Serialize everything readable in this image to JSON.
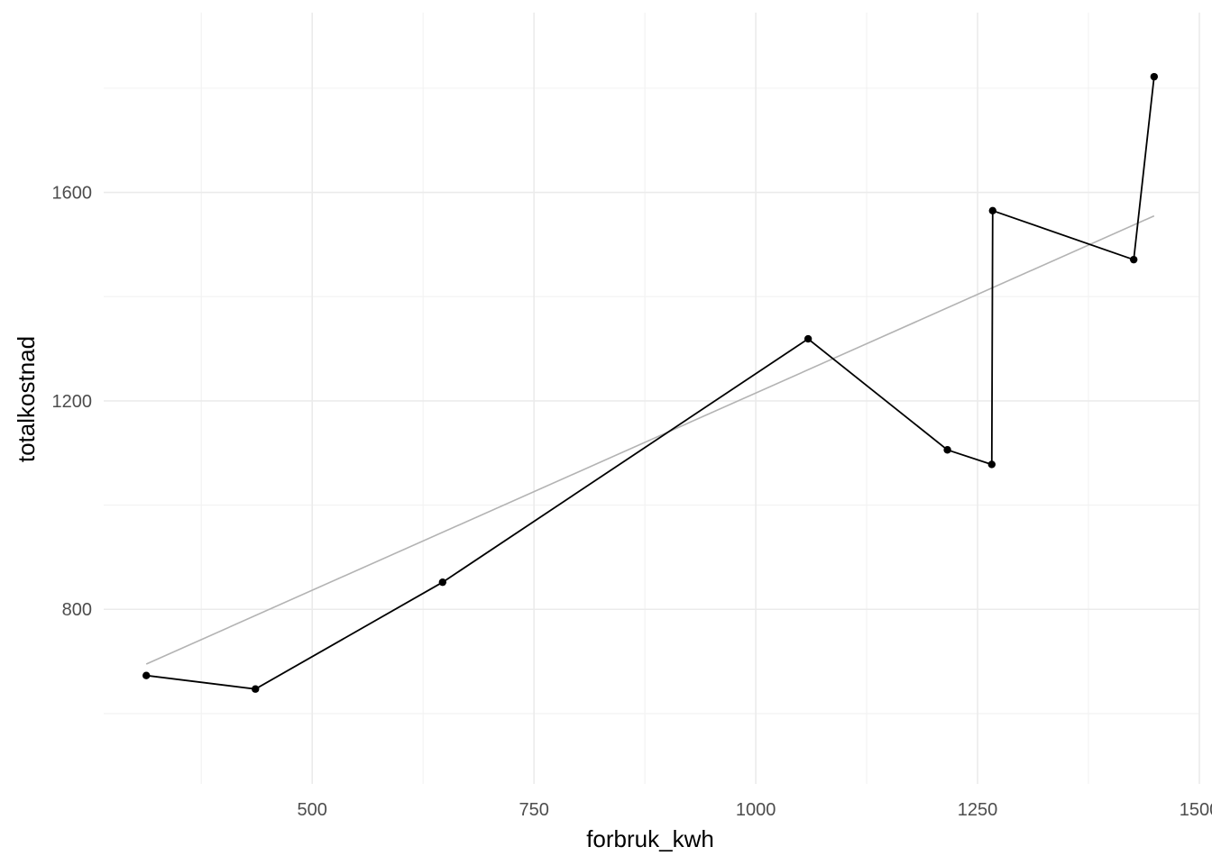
{
  "chart_data": {
    "type": "line",
    "xlabel": "forbruk_kwh",
    "ylabel": "totalkostnad",
    "xlim": [
      265,
      1500
    ],
    "ylim": [
      465,
      1945
    ],
    "x_ticks": [
      500,
      750,
      1000,
      1250,
      1500
    ],
    "x_tick_labels": [
      "500",
      "750",
      "1000",
      "1250",
      "1500"
    ],
    "y_ticks": [
      800,
      1200,
      1600
    ],
    "y_tick_labels": [
      "800",
      "1200",
      "1600"
    ],
    "x_minor_ticks": [
      375,
      625,
      875,
      1125,
      1375
    ],
    "y_minor_ticks": [
      600,
      1000,
      1400,
      1800
    ],
    "grid": true,
    "legend": "none",
    "series": [
      {
        "kind": "line-with-points",
        "color": "#000000",
        "x": [
          313,
          436,
          647,
          1059,
          1216,
          1266,
          1267,
          1426,
          1449
        ],
        "y": [
          673,
          647,
          852,
          1319,
          1106,
          1078,
          1565,
          1471,
          1822
        ]
      },
      {
        "kind": "trend-line",
        "color": "#b3b3b3",
        "x": [
          313,
          1449
        ],
        "y": [
          695,
          1555
        ]
      }
    ]
  }
}
